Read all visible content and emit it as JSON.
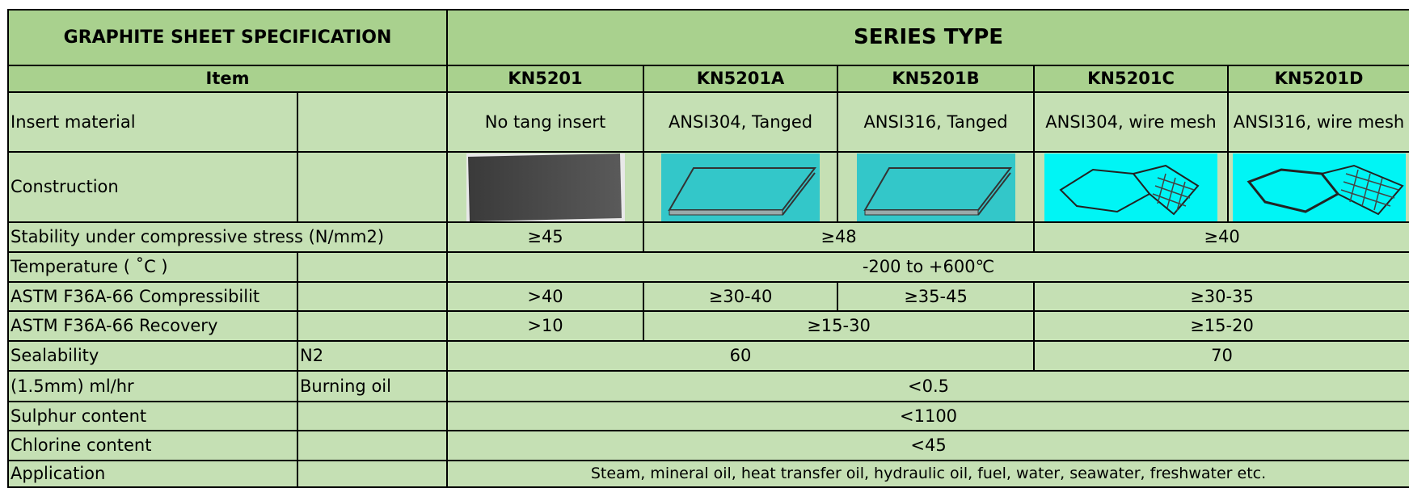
{
  "header": {
    "title": "GRAPHITE SHEET SPECIFICATION",
    "series_label": "SERIES TYPE",
    "item_label": "Item",
    "series": [
      "KN5201",
      "KN5201A",
      "KN5201B",
      "KN5201C",
      "KN5201D"
    ]
  },
  "rows": [
    {
      "item": "Insert material",
      "values": [
        "No tang insert",
        "ANSI304, Tanged",
        "ANSI316, Tanged",
        "ANSI304, wire mesh",
        "ANSI316, wire mesh"
      ]
    },
    {
      "item": "Construction"
    },
    {
      "item": "Stability under compressive stress (N/mm2)",
      "values": [
        "≥45",
        "≥48",
        "≥40"
      ]
    },
    {
      "item": "Temperature ( ˚C )",
      "values": [
        "-200 to +600℃"
      ]
    },
    {
      "item": "ASTM F36A-66 Compressibilit",
      "values": [
        ">40",
        "≥30-40",
        "≥35-45",
        "≥30-35"
      ]
    },
    {
      "item": "ASTM F36A-66 Recovery",
      "values": [
        ">10",
        "≥15-30",
        "≥15-20"
      ]
    },
    {
      "item": "Sealability",
      "sub": "N2",
      "values": [
        "60",
        "70"
      ]
    },
    {
      "item": "(1.5mm) ml/hr",
      "sub": "Burning oil",
      "values": [
        "<0.5"
      ]
    },
    {
      "item": "Sulphur content",
      "values": [
        "<1100"
      ]
    },
    {
      "item": "Chlorine content",
      "values": [
        "<45"
      ]
    },
    {
      "item": "Application",
      "values": [
        "Steam, mineral oil, heat transfer oil, hydraulic oil, fuel, water, seawater, freshwater etc."
      ]
    }
  ]
}
